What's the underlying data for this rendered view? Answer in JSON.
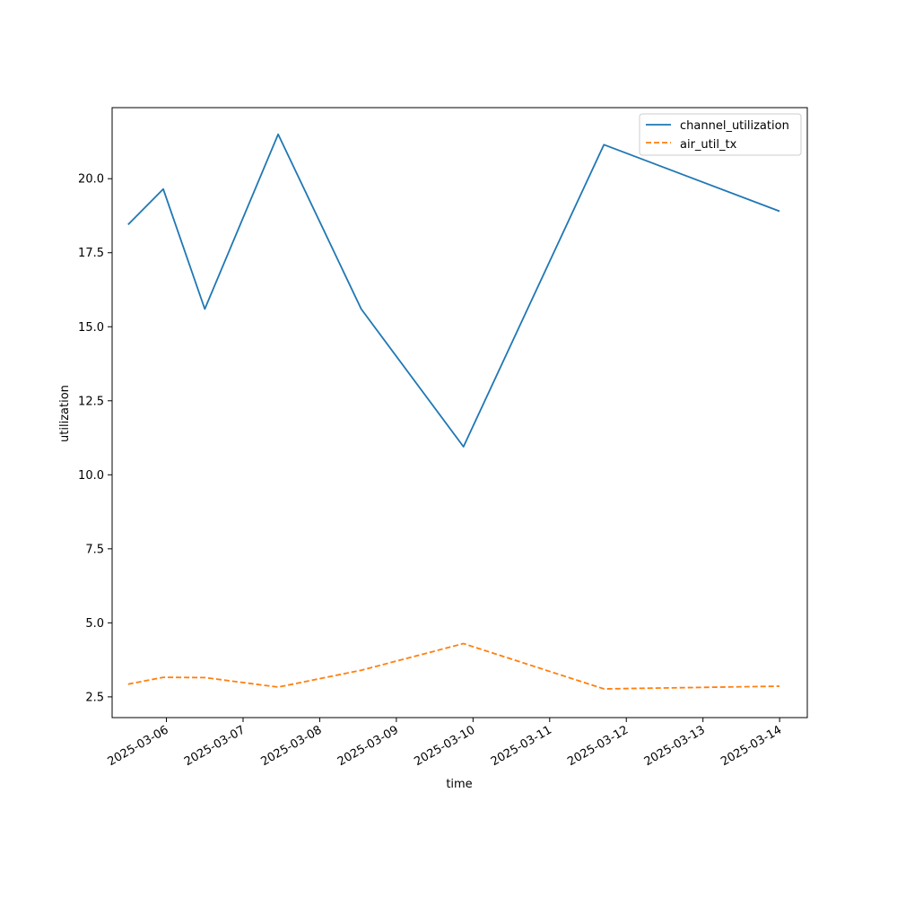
{
  "chart_data": {
    "type": "line",
    "xlabel": "time",
    "ylabel": "utilization",
    "x_tick_labels": [
      "2025-03-06",
      "2025-03-07",
      "2025-03-08",
      "2025-03-09",
      "2025-03-10",
      "2025-03-11",
      "2025-03-12",
      "2025-03-13",
      "2025-03-14"
    ],
    "y_tick_labels": [
      "2.5",
      "5.0",
      "7.5",
      "10.0",
      "12.5",
      "15.0",
      "17.5",
      "20.0"
    ],
    "y_ticks": [
      2.5,
      5.0,
      7.5,
      10.0,
      12.5,
      15.0,
      17.5,
      20.0
    ],
    "xlim": [
      "2025-03-05T07:00",
      "2025-03-14T08:40"
    ],
    "ylim": [
      1.8,
      22.4
    ],
    "grid": false,
    "legend_position": "top-right",
    "series": [
      {
        "name": "channel_utilization",
        "color": "#1f77b4",
        "line_style": "solid",
        "points": [
          {
            "x": "2025-03-05T12:00",
            "y": 18.45
          },
          {
            "x": "2025-03-05T23:00",
            "y": 19.65
          },
          {
            "x": "2025-03-06T12:00",
            "y": 15.6
          },
          {
            "x": "2025-03-07T11:00",
            "y": 21.5
          },
          {
            "x": "2025-03-08T13:00",
            "y": 15.6
          },
          {
            "x": "2025-03-09T21:00",
            "y": 10.95
          },
          {
            "x": "2025-03-11T17:00",
            "y": 21.15
          },
          {
            "x": "2025-03-14T00:00",
            "y": 18.9
          }
        ]
      },
      {
        "name": "air_util_tx",
        "color": "#ff7f0e",
        "line_style": "dashed",
        "points": [
          {
            "x": "2025-03-05T12:00",
            "y": 2.93
          },
          {
            "x": "2025-03-05T23:00",
            "y": 3.16
          },
          {
            "x": "2025-03-06T12:00",
            "y": 3.15
          },
          {
            "x": "2025-03-07T11:00",
            "y": 2.83
          },
          {
            "x": "2025-03-08T13:00",
            "y": 3.4
          },
          {
            "x": "2025-03-09T21:00",
            "y": 4.3
          },
          {
            "x": "2025-03-11T17:00",
            "y": 2.77
          },
          {
            "x": "2025-03-14T00:00",
            "y": 2.86
          }
        ]
      }
    ]
  }
}
